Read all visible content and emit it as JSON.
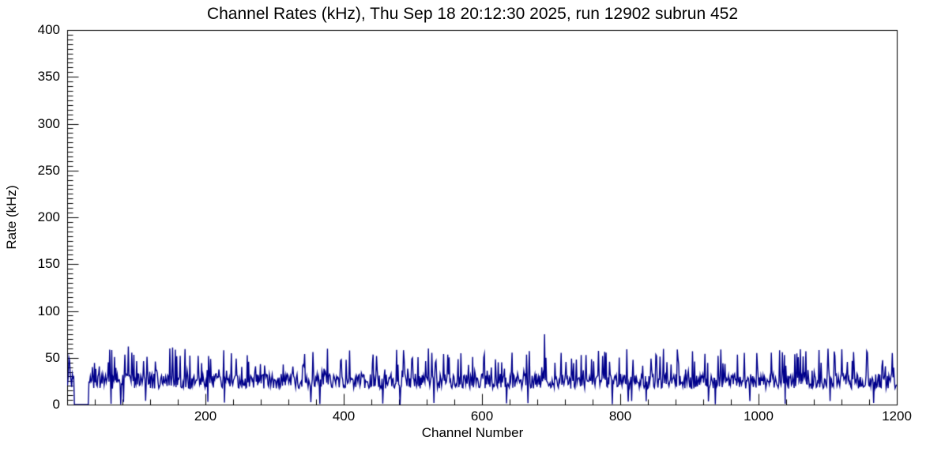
{
  "chart_data": {
    "type": "line",
    "title": "Channel Rates (kHz), Thu Sep 18 20:12:30 2025, run 12902 subrun 452",
    "xlabel": "Channel Number",
    "ylabel": "Rate (kHz)",
    "xlim": [
      0,
      1200
    ],
    "ylim": [
      0,
      400
    ],
    "x_major_ticks": [
      200,
      400,
      600,
      800,
      1000,
      1200
    ],
    "x_minor_step": 40,
    "y_major_ticks": [
      0,
      50,
      100,
      150,
      200,
      250,
      300,
      350,
      400
    ],
    "y_minor_step": 5,
    "grid": false,
    "legend": false,
    "line_color": "#00008b",
    "axis_color": "#000000",
    "background_color": "#ffffff",
    "summary": "About 1200 channels; rates fluctuate roughly 15-55 kHz around a ~25 kHz baseline, with scattered dead channels at 0 kHz and a maximum spike of ~75 kHz near channel 690.",
    "generation": {
      "seed": 12902,
      "n_channels": 1200,
      "base_min": 17,
      "base_max": 33,
      "spike_prob": 0.16,
      "spike_max": 60,
      "dead_prob": 0.02,
      "notable_points": [
        {
          "x": 2,
          "y": 50
        },
        {
          "x": 88,
          "y": 62
        },
        {
          "x": 148,
          "y": 60
        },
        {
          "x": 152,
          "y": 61
        },
        {
          "x": 226,
          "y": 58
        },
        {
          "x": 355,
          "y": 56
        },
        {
          "x": 690,
          "y": 75
        },
        {
          "x": 1030,
          "y": 58
        },
        {
          "x": 1068,
          "y": 57
        },
        {
          "x": 1193,
          "y": 55
        }
      ],
      "dead_regions": [
        [
          10,
          30
        ]
      ]
    }
  }
}
